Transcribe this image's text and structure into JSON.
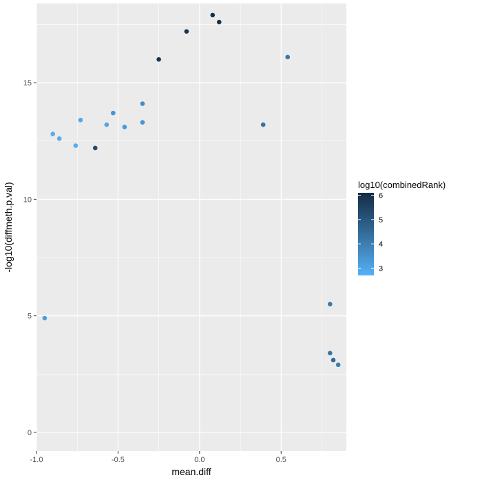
{
  "chart_data": {
    "type": "scatter",
    "title": "",
    "xlabel": "mean.diff",
    "ylabel": "-log10(diffmeth.p.val)",
    "xlim": [
      -1.0,
      0.9
    ],
    "ylim": [
      -0.8,
      18.4
    ],
    "x_ticks": [
      -1.0,
      -0.5,
      0.0,
      0.5
    ],
    "x_tick_labels": [
      "-1.0",
      "-0.5",
      "0.0",
      "0.5"
    ],
    "y_ticks": [
      0,
      5,
      10,
      15
    ],
    "y_tick_labels": [
      "0",
      "5",
      "10",
      "15"
    ],
    "grid": true,
    "legend_position": "right",
    "color_scale": {
      "title": "log10(combinedRank)",
      "range": [
        2.7,
        6.1
      ],
      "ticks": [
        3,
        4,
        5,
        6
      ],
      "tick_labels": [
        "3",
        "4",
        "5",
        "6"
      ],
      "low_color": "#56b1f7",
      "high_color": "#132b43"
    },
    "background_color": "#ebebeb",
    "grid_color": "#ffffff",
    "points": [
      {
        "x": 0.54,
        "y": 16.1,
        "c": 4.2
      },
      {
        "x": 0.08,
        "y": 17.9,
        "c": 6.0
      },
      {
        "x": 0.12,
        "y": 17.6,
        "c": 5.9
      },
      {
        "x": -0.08,
        "y": 17.2,
        "c": 5.8
      },
      {
        "x": -0.25,
        "y": 16.0,
        "c": 5.9
      },
      {
        "x": -0.9,
        "y": 12.8,
        "c": 2.8
      },
      {
        "x": -0.86,
        "y": 12.6,
        "c": 2.8
      },
      {
        "x": -0.76,
        "y": 12.3,
        "c": 2.8
      },
      {
        "x": -0.73,
        "y": 13.4,
        "c": 2.9
      },
      {
        "x": -0.53,
        "y": 13.7,
        "c": 3.4
      },
      {
        "x": -0.57,
        "y": 13.2,
        "c": 3.0
      },
      {
        "x": -0.46,
        "y": 13.1,
        "c": 3.3
      },
      {
        "x": -0.35,
        "y": 14.1,
        "c": 3.6
      },
      {
        "x": -0.35,
        "y": 13.3,
        "c": 3.4
      },
      {
        "x": 0.39,
        "y": 13.2,
        "c": 4.3
      },
      {
        "x": -0.95,
        "y": 4.9,
        "c": 3.2
      },
      {
        "x": 0.8,
        "y": 5.5,
        "c": 4.1
      },
      {
        "x": 0.85,
        "y": 2.9,
        "c": 4.0
      },
      {
        "x": 0.82,
        "y": 3.1,
        "c": 4.5
      },
      {
        "x": 0.8,
        "y": 3.4,
        "c": 4.2
      },
      {
        "x": -0.64,
        "y": 12.2,
        "c": 5.3
      }
    ]
  }
}
